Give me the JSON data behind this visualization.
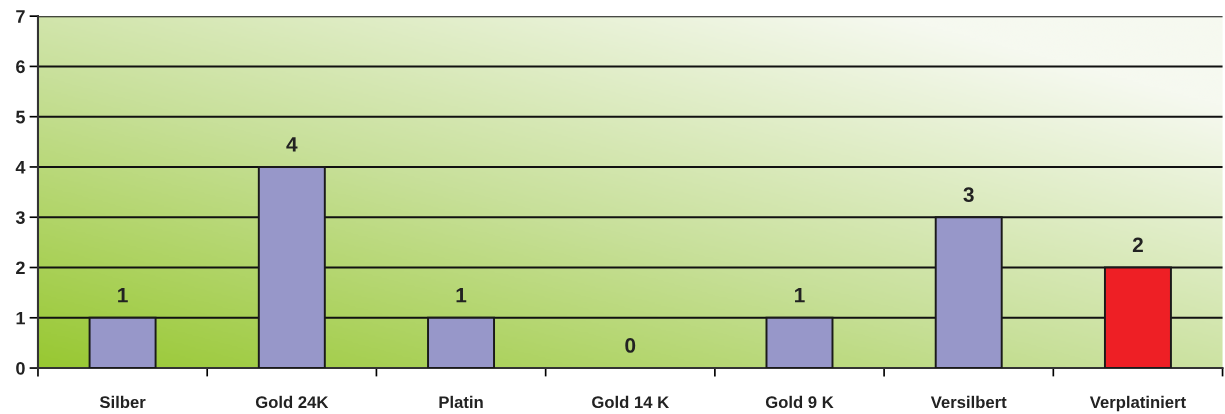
{
  "chart_data": {
    "type": "bar",
    "categories": [
      "Silber",
      "Gold 24K",
      "Platin",
      "Gold 14 K",
      "Gold 9 K",
      "Versilbert",
      "Verplatiniert"
    ],
    "values": [
      1,
      4,
      1,
      0,
      1,
      3,
      2
    ],
    "colors": [
      "#9797c9",
      "#9797c9",
      "#9797c9",
      "#9797c9",
      "#9797c9",
      "#9797c9",
      "#ee1f25"
    ],
    "ylim": [
      0,
      7
    ],
    "yticks": [
      0,
      1,
      2,
      3,
      4,
      5,
      6,
      7
    ],
    "grid": "y",
    "data_labels": true
  }
}
